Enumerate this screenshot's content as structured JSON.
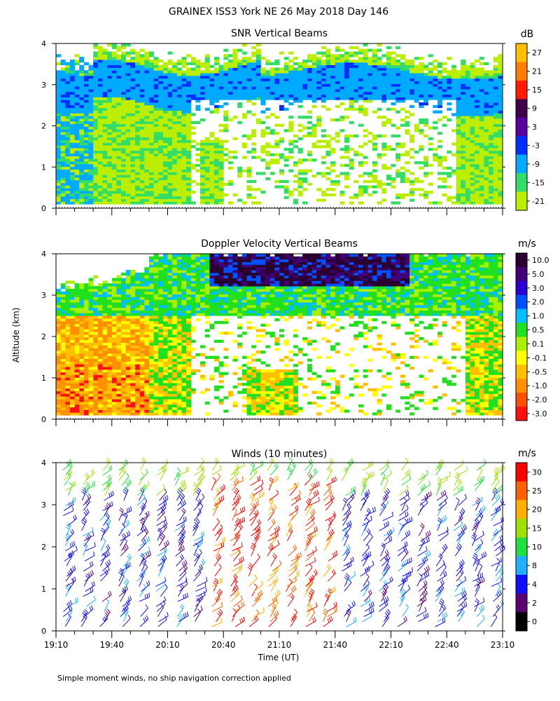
{
  "page": {
    "title": "GRAINEX ISS3 York NE  26 May 2018 Day 146",
    "ylabel": "Altitude (km)",
    "xlabel": "Time (UT)",
    "footnote": "Simple moment winds, no ship navigation correction applied"
  },
  "chart_data": [
    {
      "type": "heatmap",
      "title": "SNR Vertical Beams",
      "ylabel": "Altitude (km)",
      "x_ticks": [
        "19:10",
        "19:40",
        "20:10",
        "20:40",
        "21:10",
        "21:40",
        "22:10",
        "22:40",
        "23:10"
      ],
      "y_ticks": [
        "0",
        "1",
        "2",
        "3",
        "4"
      ],
      "ylim": [
        0,
        4
      ],
      "colorbar": {
        "unit": "dB",
        "labels": [
          "27",
          "21",
          "15",
          "9",
          "3",
          "-3",
          "-9",
          "-15",
          "-21"
        ],
        "colors": [
          "#ffc000",
          "#ff8000",
          "#ff1a00",
          "#40004a",
          "#5a00a0",
          "#0030ff",
          "#00aaff",
          "#33dd66",
          "#bbee00"
        ]
      },
      "description_bands": [
        {
          "x_from": "19:10",
          "x_to": "19:35",
          "alt_from": 0.1,
          "alt_to": 3.0,
          "dominant_db": "-9"
        },
        {
          "x_from": "19:30",
          "x_to": "21:00",
          "alt_from": 2.4,
          "alt_to": 3.5,
          "dominant_db": "-9"
        },
        {
          "x_from": "20:55",
          "x_to": "23:10",
          "alt_from": 2.0,
          "alt_to": 3.5,
          "dominant_db": "-15"
        }
      ]
    },
    {
      "type": "heatmap",
      "title": "Doppler Velocity Vertical Beams",
      "ylabel": "Altitude (km)",
      "x_ticks": [
        "19:10",
        "19:40",
        "20:10",
        "20:40",
        "21:10",
        "21:40",
        "22:10",
        "22:40",
        "23:10"
      ],
      "y_ticks": [
        "0",
        "1",
        "2",
        "3",
        "4"
      ],
      "ylim": [
        0,
        4
      ],
      "colorbar": {
        "unit": "m/s",
        "labels": [
          "10.0",
          "5.0",
          "3.0",
          "2.0",
          "1.0",
          "0.5",
          "0.1",
          "-0.1",
          "-0.5",
          "-1.0",
          "-2.0",
          "-3.0"
        ],
        "colors": [
          "#2a0030",
          "#40007a",
          "#2a00d0",
          "#0050ff",
          "#00bfff",
          "#20e020",
          "#a8f000",
          "#ffff00",
          "#ffc000",
          "#ff9000",
          "#ff5000",
          "#ff1010"
        ]
      }
    },
    {
      "type": "scatter",
      "title": "Winds (10 minutes)",
      "ylabel": "Altitude (km)",
      "xlabel": "Time (UT)",
      "x_ticks": [
        "19:10",
        "19:40",
        "20:10",
        "20:40",
        "21:10",
        "21:40",
        "22:10",
        "22:40",
        "23:10"
      ],
      "y_ticks": [
        "0",
        "1",
        "2",
        "3",
        "4"
      ],
      "ylim": [
        0,
        4
      ],
      "colorbar": {
        "unit": "m/s",
        "labels": [
          "30",
          "25",
          "20",
          "15",
          "10",
          "8",
          "4",
          "2",
          "0"
        ],
        "colors": [
          "#ff0000",
          "#ff6000",
          "#ffb000",
          "#a0e000",
          "#20e040",
          "#20b0ff",
          "#1010ff",
          "#5a0070",
          "#000000"
        ]
      }
    }
  ]
}
